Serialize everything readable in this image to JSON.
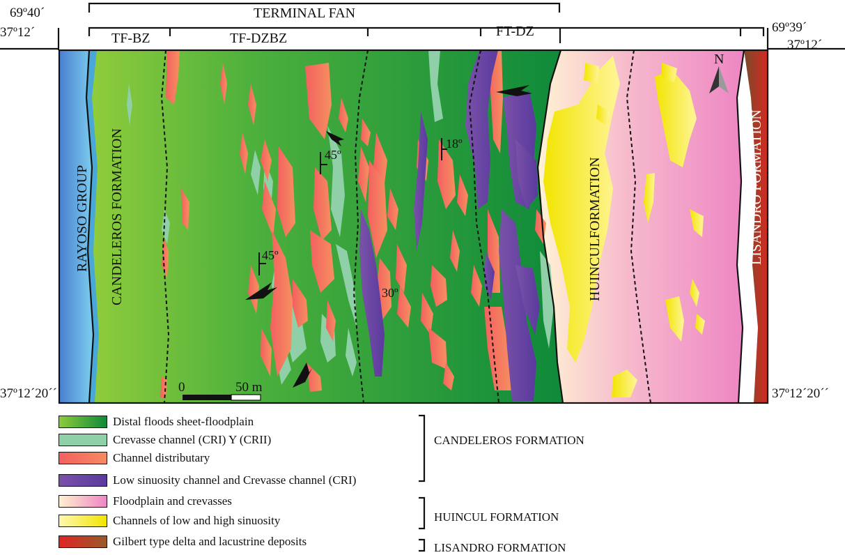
{
  "coords": {
    "top_left_lon": "69º40´",
    "top_left_lat": "37º12´",
    "top_right_lon": "69º39´",
    "top_right_lat": "37º12´",
    "bottom_left_lat": "37º12´20´´",
    "bottom_right_lat": "37º12´20´´"
  },
  "header": {
    "title": "TERMINAL FAN",
    "zones": [
      "TF-BZ",
      "TF-DZBZ",
      "FT-DZ"
    ]
  },
  "map": {
    "formations": {
      "rayoso": "RAYOSO GROUP",
      "candeleros": "CANDELEROS FORMATION",
      "huincul": "HUINCULFORMATION",
      "lisandro": "LISANDRO FORMATION"
    },
    "dips": [
      "45º",
      "18º",
      "45º",
      "30º"
    ],
    "north": "N",
    "scale": {
      "start": "0",
      "end": "50 m"
    }
  },
  "legend": {
    "items": [
      {
        "label": "Distal  floods sheet-floodplain",
        "colors": [
          "#8ccc3a",
          "#0f8a3a"
        ]
      },
      {
        "label": "Crevasse channel (CRI) Y (CRII)",
        "colors": [
          "#8fd0a8",
          "#8fd0a8"
        ]
      },
      {
        "label": "Channel distributary",
        "colors": [
          "#f46060",
          "#f58a62"
        ]
      },
      {
        "label": "Low sinuosity channel and Crevasse channel (CRI)",
        "colors": [
          "#7a52a8",
          "#5a3a9e"
        ]
      },
      {
        "label": "Floodplain and crevasses",
        "colors": [
          "#fff1d0",
          "#ee86c4"
        ]
      },
      {
        "label": "Channels of low and high sinuosity",
        "colors": [
          "#fff8b0",
          "#f2e500"
        ]
      },
      {
        "label": "Gilbert type delta and lacustrine deposits",
        "colors": [
          "#e02525",
          "#9a5a2a"
        ]
      }
    ],
    "groups": [
      "CANDELEROS FORMATION",
      "HUINCUL FORMATION",
      "LISANDRO FORMATION"
    ]
  }
}
